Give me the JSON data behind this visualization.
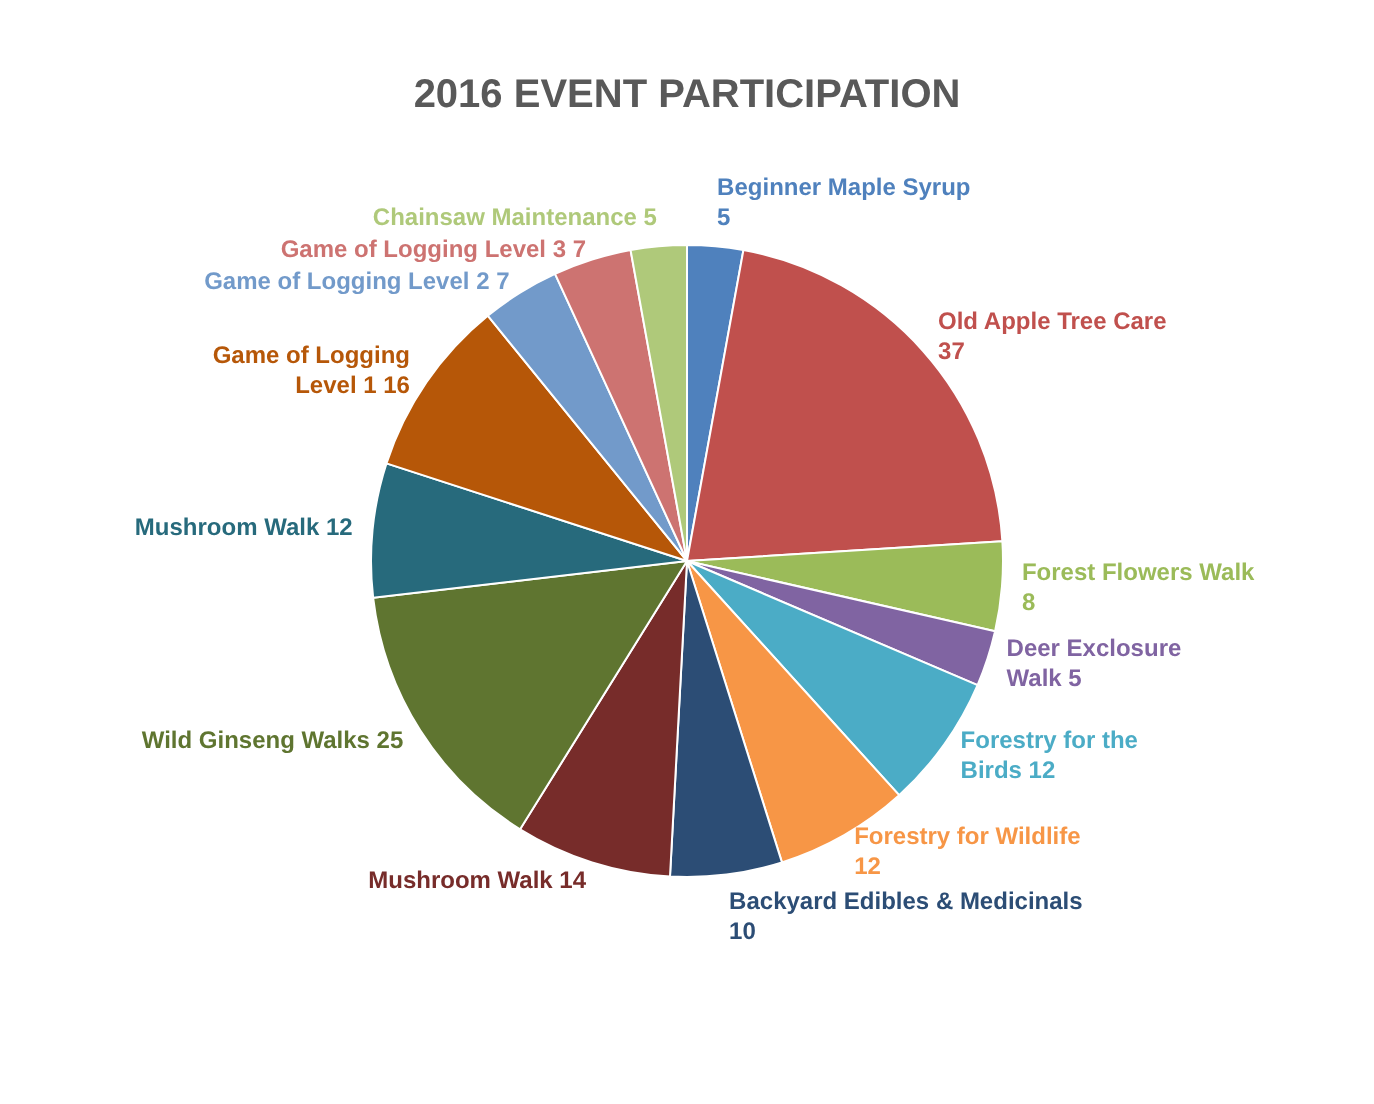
{
  "chart_data": {
    "type": "pie",
    "title": "2016 EVENT PARTICIPATION",
    "categories": [
      "Beginner Maple Syrup",
      "Old Apple Tree Care",
      "Forest Flowers Walk",
      "Deer Exclosure Walk",
      "Forestry for the Birds",
      "Forestry for Wildlife",
      "Backyard Edibles & Medicinals",
      "Mushroom Walk",
      "Wild Ginseng Walks",
      "Mushroom Walk",
      "Game of Logging Level 1",
      "Game of Logging Level 2",
      "Game of Logging Level 3",
      "Chainsaw Maintenance"
    ],
    "values": [
      5,
      37,
      8,
      5,
      12,
      12,
      10,
      14,
      25,
      12,
      16,
      7,
      7,
      5
    ],
    "colors": [
      "#4f81bd",
      "#c0504d",
      "#9bbb59",
      "#8064a2",
      "#4bacc6",
      "#f79646",
      "#2c4d75",
      "#772c2a",
      "#5f7530",
      "#276a7c",
      "#b65708",
      "#729aca",
      "#cd7371",
      "#afc97a"
    ],
    "data_labels": true,
    "legend": false
  }
}
